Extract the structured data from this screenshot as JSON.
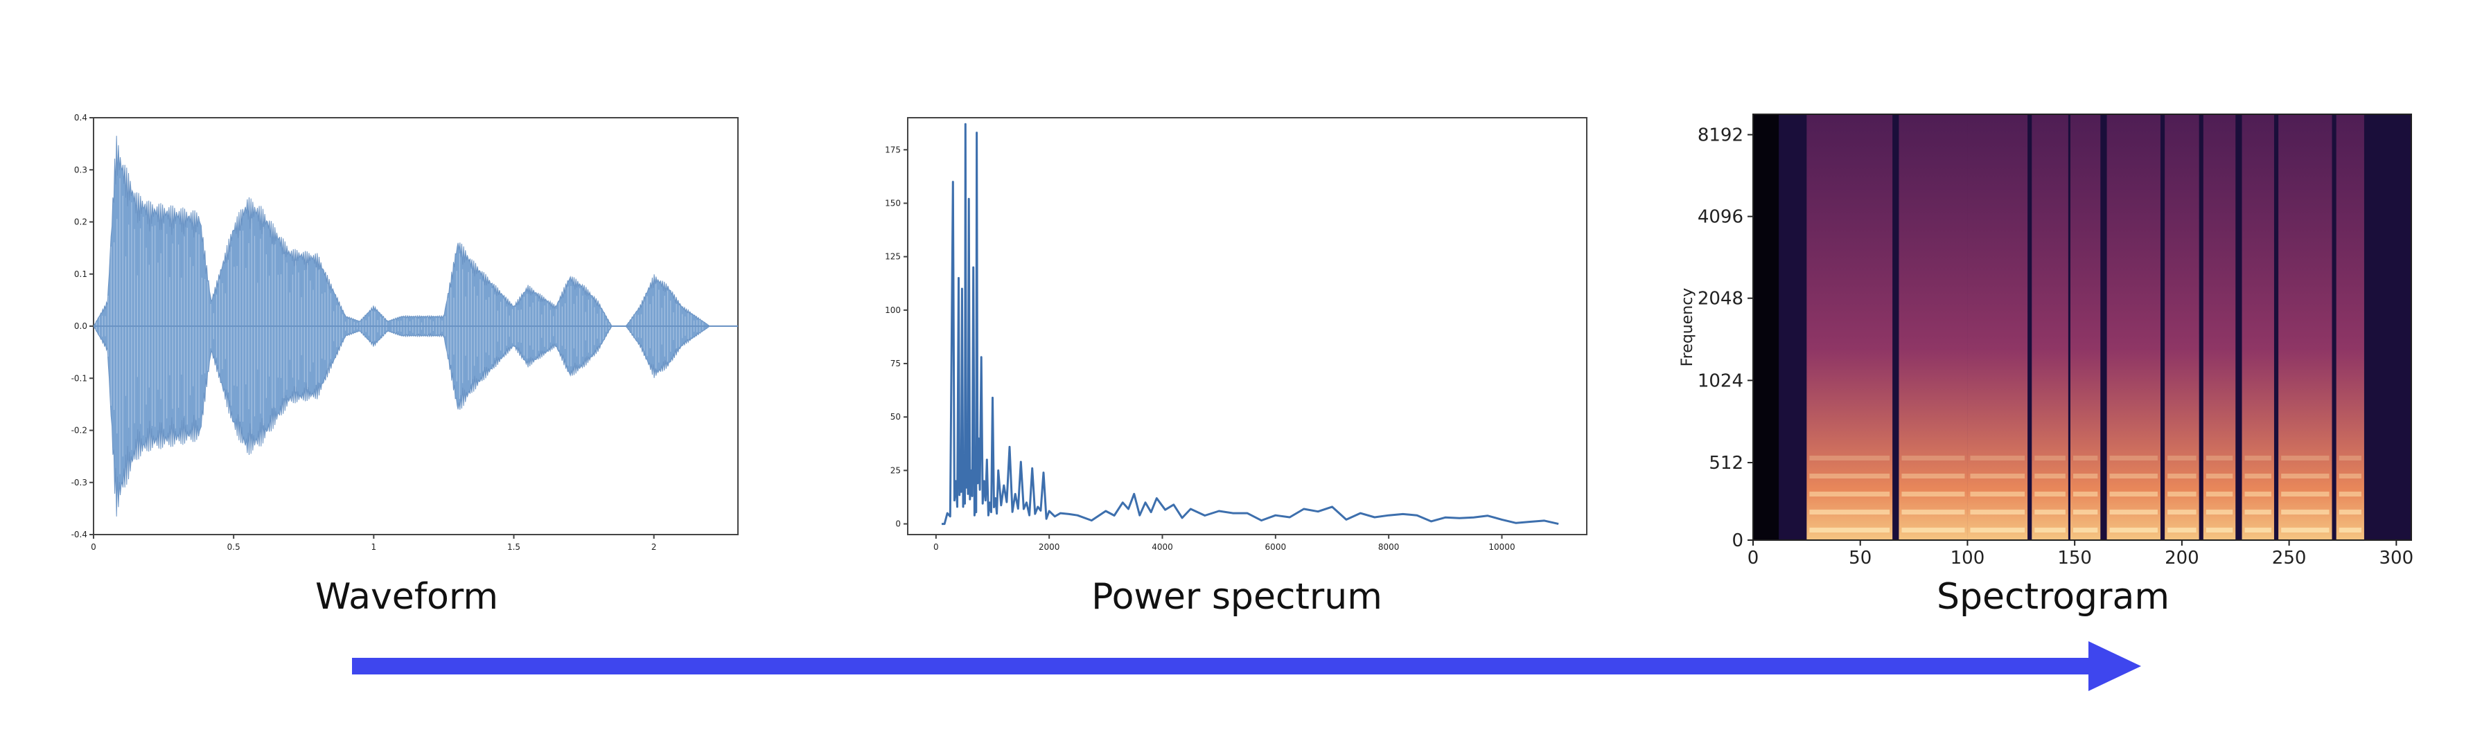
{
  "captions": {
    "waveform": "Waveform",
    "power_spectrum": "Power spectrum",
    "spectrogram": "Spectrogram"
  },
  "colors": {
    "waveform_fill": "#7aa3d1",
    "spectrum_line": "#3d6fad",
    "arrow": "#3e46ee",
    "spectrogram_dark": "#1a0e3a",
    "spectrogram_mid": "#7a2b6a",
    "spectrogram_bright": "#f5c582"
  },
  "chart_data": [
    {
      "type": "area",
      "name": "waveform",
      "x_ticks": [
        "0",
        "0.5",
        "1",
        "1.5",
        "2"
      ],
      "y_ticks": [
        "0.4",
        "0.3",
        "0.2",
        "0.1",
        "0.0",
        "-0.1",
        "-0.2",
        "-0.3",
        "-0.4"
      ],
      "xlim": [
        0,
        2.3
      ],
      "ylim": [
        -0.4,
        0.4
      ],
      "x": [
        0.0,
        0.05,
        0.08,
        0.1,
        0.15,
        0.2,
        0.3,
        0.38,
        0.42,
        0.5,
        0.55,
        0.6,
        0.7,
        0.8,
        0.9,
        0.95,
        1.0,
        1.05,
        1.1,
        1.15,
        1.2,
        1.25,
        1.3,
        1.35,
        1.4,
        1.45,
        1.5,
        1.55,
        1.6,
        1.65,
        1.7,
        1.75,
        1.8,
        1.85,
        1.9,
        1.95,
        2.0,
        2.05,
        2.1,
        2.2,
        2.3
      ],
      "amplitude": [
        0.0,
        0.05,
        0.37,
        0.33,
        0.26,
        0.24,
        0.23,
        0.22,
        0.05,
        0.2,
        0.25,
        0.23,
        0.15,
        0.14,
        0.02,
        0.01,
        0.04,
        0.01,
        0.02,
        0.02,
        0.02,
        0.02,
        0.17,
        0.13,
        0.1,
        0.07,
        0.04,
        0.08,
        0.06,
        0.04,
        0.1,
        0.08,
        0.05,
        0.0,
        0.0,
        0.04,
        0.1,
        0.08,
        0.04,
        0.0,
        0.0
      ]
    },
    {
      "type": "line",
      "name": "power_spectrum",
      "x_ticks": [
        "0",
        "2000",
        "4000",
        "6000",
        "8000",
        "10000"
      ],
      "y_ticks": [
        "175",
        "150",
        "125",
        "100",
        "75",
        "50",
        "25",
        "0"
      ],
      "xlim": [
        -500,
        11500
      ],
      "ylim": [
        -5,
        190
      ],
      "x": [
        100,
        200,
        300,
        350,
        400,
        430,
        460,
        500,
        520,
        550,
        580,
        620,
        660,
        700,
        720,
        750,
        800,
        850,
        900,
        950,
        1000,
        1050,
        1100,
        1200,
        1300,
        1400,
        1500,
        1600,
        1700,
        1800,
        1900,
        2000,
        2200,
        2500,
        3000,
        3300,
        3500,
        3700,
        3900,
        4200,
        4500,
        5000,
        5500,
        6000,
        6500,
        7000,
        7500,
        8000,
        8500,
        9000,
        9500,
        10000,
        10500,
        11000
      ],
      "y": [
        0,
        5,
        160,
        20,
        115,
        30,
        110,
        20,
        187,
        35,
        152,
        25,
        120,
        10,
        183,
        40,
        78,
        20,
        30,
        10,
        59,
        12,
        25,
        18,
        36,
        14,
        29,
        10,
        26,
        8,
        24,
        6,
        5,
        4,
        6,
        10,
        14,
        10,
        12,
        9,
        7,
        6,
        5,
        4,
        7,
        8,
        5,
        4,
        4,
        3,
        3,
        2,
        1,
        0
      ]
    },
    {
      "type": "heatmap",
      "name": "spectrogram",
      "ylabel": "Frequency",
      "x_ticks": [
        "0",
        "50",
        "100",
        "150",
        "200",
        "250",
        "300"
      ],
      "y_ticks": [
        "0",
        "512",
        "1024",
        "2048",
        "4096",
        "8192"
      ],
      "xlim": [
        0,
        307
      ],
      "voiced_frames": [
        [
          25,
          65
        ],
        [
          68,
          100
        ],
        [
          100,
          128
        ],
        [
          130,
          147
        ],
        [
          148,
          162
        ],
        [
          165,
          190
        ],
        [
          192,
          208
        ],
        [
          210,
          225
        ],
        [
          228,
          243
        ],
        [
          245,
          270
        ],
        [
          272,
          285
        ]
      ]
    }
  ]
}
